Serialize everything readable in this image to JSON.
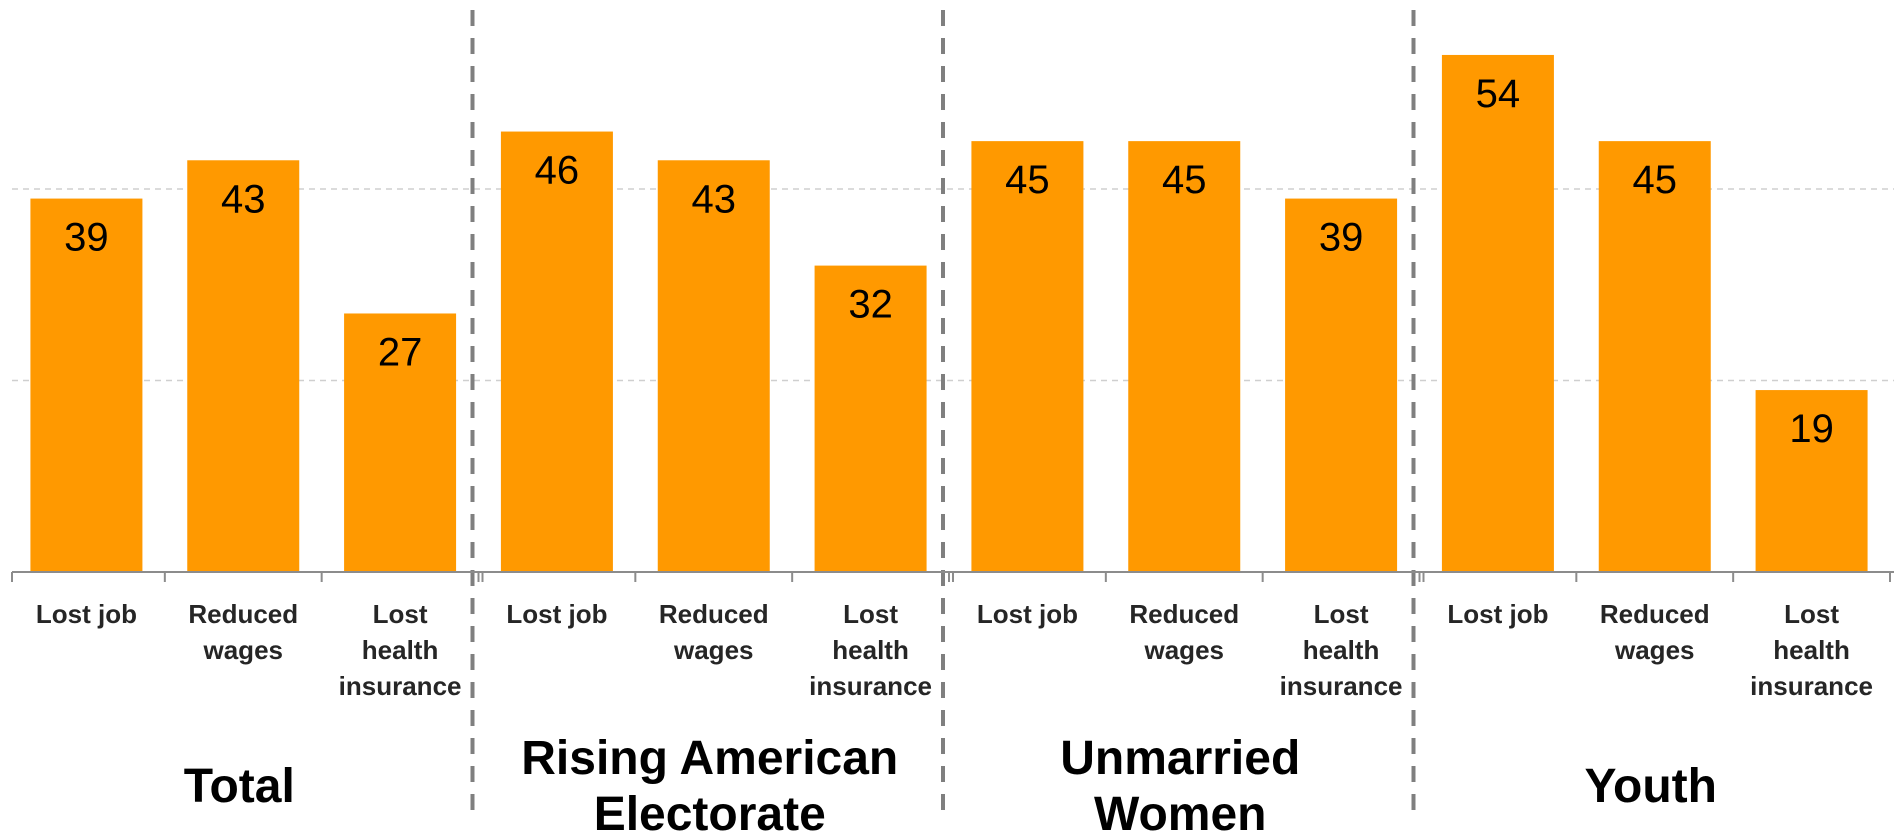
{
  "chart_data": {
    "type": "bar",
    "ylim": [
      0,
      80
    ],
    "grid": true,
    "bar_color": "#FF9900",
    "groups": [
      {
        "name": [
          "Total"
        ],
        "categories": [
          [
            "Lost job"
          ],
          [
            "Reduced",
            "wages"
          ],
          [
            "Lost",
            "health",
            "insurance"
          ]
        ],
        "values": [
          39,
          43,
          27
        ]
      },
      {
        "name": [
          "Rising American",
          "Electorate"
        ],
        "categories": [
          [
            "Lost job"
          ],
          [
            "Reduced",
            "wages"
          ],
          [
            "Lost",
            "health",
            "insurance"
          ]
        ],
        "values": [
          46,
          43,
          32
        ]
      },
      {
        "name": [
          "Unmarried",
          "Women"
        ],
        "categories": [
          [
            "Lost job"
          ],
          [
            "Reduced",
            "wages"
          ],
          [
            "Lost",
            "health",
            "insurance"
          ]
        ],
        "values": [
          45,
          45,
          39
        ]
      },
      {
        "name": [
          "Youth"
        ],
        "categories": [
          [
            "Lost job"
          ],
          [
            "Reduced",
            "wages"
          ],
          [
            "Lost",
            "health",
            "insurance"
          ]
        ],
        "values": [
          54,
          45,
          19
        ]
      }
    ]
  }
}
